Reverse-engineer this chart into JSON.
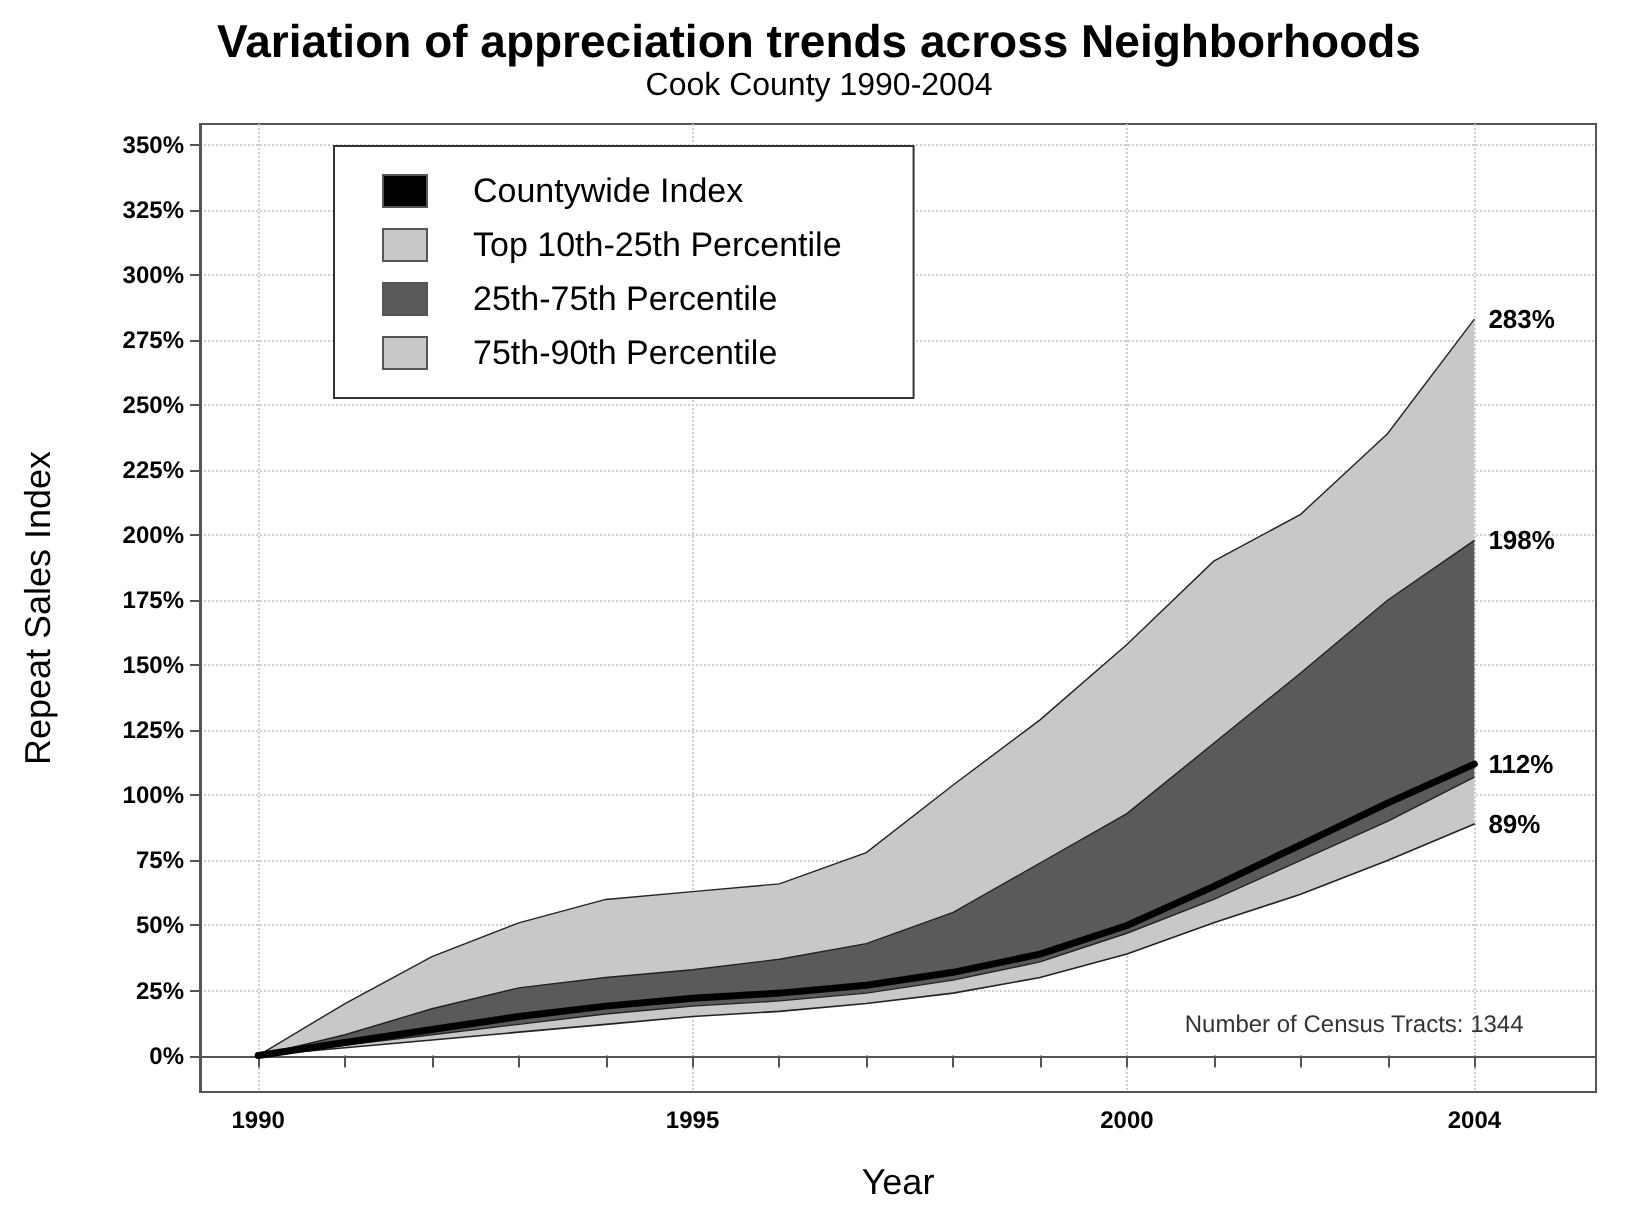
{
  "chart_data": {
    "type": "line",
    "title": "Variation of appreciation trends across Neighborhoods",
    "subtitle": "Cook County 1990-2004",
    "xlabel": "Year",
    "ylabel": "Repeat Sales Index",
    "x": [
      1990,
      1991,
      1992,
      1993,
      1994,
      1995,
      1996,
      1997,
      1998,
      1999,
      2000,
      2001,
      2002,
      2003,
      2004
    ],
    "series": [
      {
        "name": "Countywide Index",
        "type": "line",
        "color": "#000000",
        "values": [
          0,
          5,
          10,
          15,
          19,
          22,
          24,
          27,
          32,
          39,
          50,
          65,
          81,
          97,
          112
        ],
        "value_labels": [
          null,
          null,
          null,
          null,
          null,
          null,
          null,
          null,
          null,
          null,
          null,
          null,
          null,
          null,
          "112%"
        ]
      },
      {
        "type": "line",
        "color": "#222222",
        "values": [
          0,
          3,
          6,
          9,
          12,
          15,
          17,
          20,
          24,
          30,
          39,
          51,
          62,
          75,
          89
        ],
        "value_labels": [
          null,
          null,
          null,
          null,
          null,
          null,
          null,
          null,
          null,
          null,
          null,
          null,
          null,
          null,
          "89%"
        ]
      },
      {
        "name": "Top 10th-25th Percentile",
        "type": "area",
        "color": "#c8c8c8",
        "values": [
          0,
          4,
          8,
          12,
          16,
          19,
          21,
          24,
          29,
          36,
          47,
          60,
          75,
          90,
          107
        ]
      },
      {
        "name": "25th-75th Percentile",
        "type": "area",
        "color": "#5a5a5a",
        "values": [
          0,
          8,
          18,
          26,
          30,
          33,
          37,
          43,
          55,
          74,
          93,
          120,
          147,
          175,
          198
        ],
        "value_labels": [
          null,
          null,
          null,
          null,
          null,
          null,
          null,
          null,
          null,
          null,
          null,
          null,
          null,
          null,
          "198%"
        ]
      },
      {
        "name": "75th-90th Percentile",
        "type": "area",
        "color": "#c8c8c8",
        "values": [
          0,
          20,
          38,
          51,
          60,
          63,
          66,
          78,
          104,
          129,
          158,
          190,
          208,
          239,
          283
        ],
        "value_labels": [
          null,
          null,
          null,
          null,
          null,
          null,
          null,
          null,
          null,
          null,
          null,
          null,
          null,
          null,
          "283%"
        ]
      }
    ],
    "xlim": [
      1989.33,
      2005.4
    ],
    "ylim": [
      -14,
      358
    ],
    "xticks": [
      1990,
      {
        "value": 1991,
        "label": null
      },
      {
        "value": 1992,
        "label": null
      },
      {
        "value": 1993,
        "label": null
      },
      {
        "value": 1994,
        "label": null
      },
      1995,
      {
        "value": 1996,
        "label": null
      },
      {
        "value": 1997,
        "label": null
      },
      {
        "value": 1998,
        "label": null
      },
      {
        "value": 1999,
        "label": null
      },
      2000,
      {
        "value": 2001,
        "label": null
      },
      {
        "value": 2002,
        "label": null
      },
      {
        "value": 2003,
        "label": null
      },
      2004
    ],
    "yticks": [
      {
        "value": 0,
        "label": "0%"
      },
      {
        "value": 25,
        "label": "25%"
      },
      {
        "value": 50,
        "label": "50%"
      },
      {
        "value": 75,
        "label": "75%"
      },
      {
        "value": 100,
        "label": "100%"
      },
      {
        "value": 125,
        "label": "125%"
      },
      {
        "value": 150,
        "label": "150%"
      },
      {
        "value": 175,
        "label": "175%"
      },
      {
        "value": 200,
        "label": "200%"
      },
      {
        "value": 225,
        "label": "225%"
      },
      {
        "value": 250,
        "label": "250%"
      },
      {
        "value": 275,
        "label": "275%"
      },
      {
        "value": 300,
        "label": "300%"
      },
      {
        "value": 325,
        "label": "325%"
      },
      {
        "value": 350,
        "label": "350%"
      }
    ],
    "grid": true,
    "legend": "top left",
    "marker": "none",
    "line_style": "solid",
    "annotations": [
      "Number of Census Tracts: 1344"
    ]
  }
}
